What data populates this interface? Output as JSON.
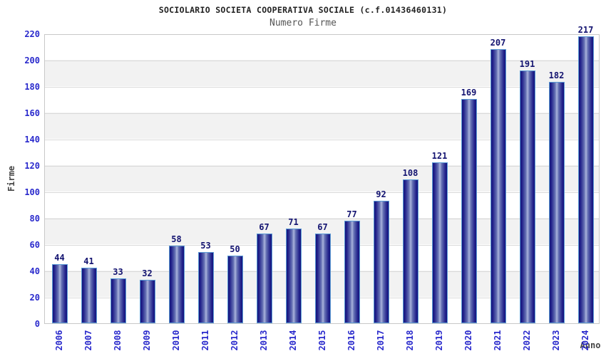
{
  "header": {
    "title": "SOCIOLARIO SOCIETA COOPERATIVA SOCIALE (c.f.01436460131)",
    "subtitle": "Numero Firme"
  },
  "chart_data": {
    "type": "bar",
    "title": "SOCIOLARIO SOCIETA COOPERATIVA SOCIALE (c.f.01436460131)",
    "subtitle": "Numero Firme",
    "xlabel": "Anno",
    "ylabel": "Firme",
    "categories": [
      "2006",
      "2007",
      "2008",
      "2009",
      "2010",
      "2011",
      "2012",
      "2013",
      "2014",
      "2015",
      "2016",
      "2017",
      "2018",
      "2019",
      "2020",
      "2021",
      "2022",
      "2023",
      "2024"
    ],
    "values": [
      44,
      41,
      33,
      32,
      58,
      53,
      50,
      67,
      71,
      67,
      77,
      92,
      108,
      121,
      169,
      207,
      191,
      182,
      217
    ],
    "ylim": [
      0,
      220
    ],
    "ytick_step": 20,
    "ytick_labels": [
      "0",
      "20",
      "40",
      "60",
      "80",
      "100",
      "120",
      "140",
      "160",
      "180",
      "200",
      "220"
    ],
    "grid": true,
    "legend": false,
    "bands_alternating": true,
    "colors": {
      "bar_edge": "#14147c",
      "bar_center": "#aab4dc",
      "bar_border": "#5b9bd5",
      "tick_label": "#2929cc",
      "value_label": "#131370",
      "axis_title": "#444444",
      "title": "#222222",
      "subtitle": "#555555",
      "band": "#f2f2f2",
      "gridline": "#d9d9d9",
      "plot_border": "#c8c8c8"
    }
  }
}
